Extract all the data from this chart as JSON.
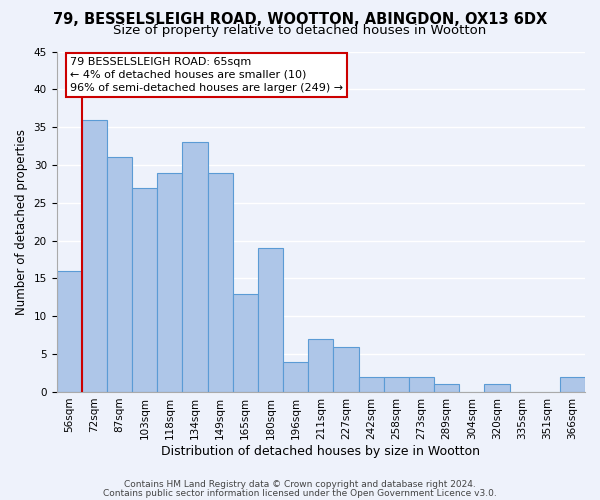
{
  "title": "79, BESSELSLEIGH ROAD, WOOTTON, ABINGDON, OX13 6DX",
  "subtitle": "Size of property relative to detached houses in Wootton",
  "xlabel": "Distribution of detached houses by size in Wootton",
  "ylabel": "Number of detached properties",
  "footnote1": "Contains HM Land Registry data © Crown copyright and database right 2024.",
  "footnote2": "Contains public sector information licensed under the Open Government Licence v3.0.",
  "bar_labels": [
    "56sqm",
    "72sqm",
    "87sqm",
    "103sqm",
    "118sqm",
    "134sqm",
    "149sqm",
    "165sqm",
    "180sqm",
    "196sqm",
    "211sqm",
    "227sqm",
    "242sqm",
    "258sqm",
    "273sqm",
    "289sqm",
    "304sqm",
    "320sqm",
    "335sqm",
    "351sqm",
    "366sqm"
  ],
  "bar_heights": [
    16,
    36,
    31,
    27,
    29,
    33,
    29,
    13,
    19,
    4,
    7,
    6,
    2,
    2,
    2,
    1,
    0,
    1,
    0,
    0,
    2
  ],
  "bar_color": "#aec6e8",
  "bar_edge_color": "#5b9bd5",
  "background_color": "#eef2fb",
  "grid_color": "#ffffff",
  "ylim": [
    0,
    45
  ],
  "yticks": [
    0,
    5,
    10,
    15,
    20,
    25,
    30,
    35,
    40,
    45
  ],
  "annotation_line1": "79 BESSELSLEIGH ROAD: 65sqm",
  "annotation_line2": "← 4% of detached houses are smaller (10)",
  "annotation_line3": "96% of semi-detached houses are larger (249) →",
  "property_line_color": "#cc0000",
  "property_line_x": 0.5,
  "title_fontsize": 10.5,
  "subtitle_fontsize": 9.5,
  "annotation_fontsize": 8.0,
  "ylabel_fontsize": 8.5,
  "xlabel_fontsize": 9.0,
  "tick_fontsize": 7.5,
  "footnote_fontsize": 6.5
}
